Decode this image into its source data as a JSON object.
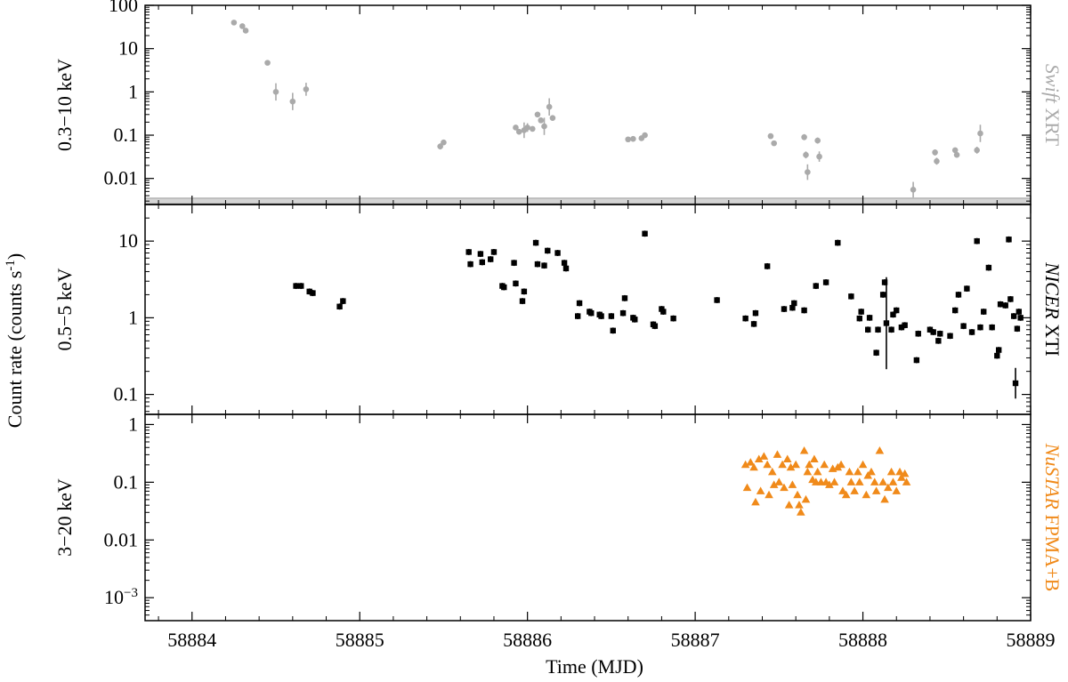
{
  "figure": {
    "ylabel": "Count rate (counts s",
    "ylabel_sup": "-1",
    "ylabel_close": ")",
    "xlabel": "Time (MJD)"
  },
  "chart_data": [
    {
      "type": "scatter",
      "panel": "swift",
      "ylabel": "0.3−10 keV",
      "instrument_italic": "Swift",
      "instrument_rest": " XRT",
      "color": "#aaaaaa",
      "marker": "circle",
      "y_scale": "log",
      "ylim": [
        0.0025,
        100
      ],
      "y_ticks": [
        {
          "value": 100,
          "label": "100"
        },
        {
          "value": 10,
          "label": "10"
        },
        {
          "value": 1,
          "label": "1"
        },
        {
          "value": 0.1,
          "label": "0.1"
        },
        {
          "value": 0.01,
          "label": "0.01"
        }
      ],
      "background_band": [
        0.0026,
        0.0035
      ],
      "points": [
        {
          "x": 58884.25,
          "y": 40,
          "yerr": [
            0.05,
            0.05
          ]
        },
        {
          "x": 58884.3,
          "y": 33,
          "yerr": [
            0.05,
            0.05
          ]
        },
        {
          "x": 58884.32,
          "y": 26,
          "yerr": [
            0.05,
            0.05
          ]
        },
        {
          "x": 58884.45,
          "y": 4.7,
          "yerr": [
            0.05,
            0.05
          ]
        },
        {
          "x": 58884.5,
          "y": 1.0,
          "yerr": [
            0.2,
            0.2
          ]
        },
        {
          "x": 58884.6,
          "y": 0.6,
          "yerr": [
            0.2,
            0.2
          ]
        },
        {
          "x": 58884.68,
          "y": 1.15,
          "yerr": [
            0.15,
            0.15
          ]
        },
        {
          "x": 58885.48,
          "y": 0.055,
          "yerr": [
            0.07,
            0.07
          ]
        },
        {
          "x": 58885.5,
          "y": 0.068,
          "yerr": [
            0.05,
            0.05
          ]
        },
        {
          "x": 58885.93,
          "y": 0.15,
          "yerr": [
            0.05,
            0.05
          ]
        },
        {
          "x": 58885.95,
          "y": 0.12,
          "yerr": [
            0.05,
            0.05
          ]
        },
        {
          "x": 58885.98,
          "y": 0.13,
          "yerr": [
            0.18,
            0.18
          ]
        },
        {
          "x": 58886.0,
          "y": 0.15,
          "yerr": [
            0.1,
            0.1
          ]
        },
        {
          "x": 58886.03,
          "y": 0.14,
          "yerr": [
            0.05,
            0.05
          ]
        },
        {
          "x": 58886.06,
          "y": 0.3,
          "yerr": [
            0.05,
            0.05
          ]
        },
        {
          "x": 58886.08,
          "y": 0.22,
          "yerr": [
            0.05,
            0.05
          ]
        },
        {
          "x": 58886.1,
          "y": 0.16,
          "yerr": [
            0.2,
            0.2
          ]
        },
        {
          "x": 58886.13,
          "y": 0.45,
          "yerr": [
            0.2,
            0.2
          ]
        },
        {
          "x": 58886.15,
          "y": 0.25,
          "yerr": [
            0.05,
            0.05
          ]
        },
        {
          "x": 58886.6,
          "y": 0.08,
          "yerr": [
            0.04,
            0.04
          ]
        },
        {
          "x": 58886.63,
          "y": 0.082,
          "yerr": [
            0.04,
            0.04
          ]
        },
        {
          "x": 58886.68,
          "y": 0.085,
          "yerr": [
            0.05,
            0.05
          ]
        },
        {
          "x": 58886.7,
          "y": 0.1,
          "yerr": [
            0.05,
            0.05
          ]
        },
        {
          "x": 58887.45,
          "y": 0.095,
          "yerr": [
            0.05,
            0.05
          ]
        },
        {
          "x": 58887.47,
          "y": 0.065,
          "yerr": [
            0.05,
            0.05
          ]
        },
        {
          "x": 58887.65,
          "y": 0.09,
          "yerr": [
            0.07,
            0.07
          ]
        },
        {
          "x": 58887.66,
          "y": 0.035,
          "yerr": [
            0.08,
            0.08
          ]
        },
        {
          "x": 58887.67,
          "y": 0.014,
          "yerr": [
            0.18,
            0.18
          ]
        },
        {
          "x": 58887.73,
          "y": 0.075,
          "yerr": [
            0.07,
            0.07
          ]
        },
        {
          "x": 58887.74,
          "y": 0.032,
          "yerr": [
            0.12,
            0.12
          ]
        },
        {
          "x": 58888.3,
          "y": 0.0055,
          "yerr": [
            0.18,
            0.18
          ]
        },
        {
          "x": 58888.43,
          "y": 0.04,
          "yerr": [
            0.07,
            0.07
          ]
        },
        {
          "x": 58888.44,
          "y": 0.025,
          "yerr": [
            0.08,
            0.08
          ]
        },
        {
          "x": 58888.55,
          "y": 0.045,
          "yerr": [
            0.05,
            0.05
          ]
        },
        {
          "x": 58888.56,
          "y": 0.035,
          "yerr": [
            0.05,
            0.05
          ]
        },
        {
          "x": 58888.68,
          "y": 0.045,
          "yerr": [
            0.08,
            0.08
          ]
        },
        {
          "x": 58888.7,
          "y": 0.11,
          "yerr": [
            0.2,
            0.2
          ]
        }
      ]
    },
    {
      "type": "scatter",
      "panel": "nicer",
      "ylabel": "0.5−5 keV",
      "instrument_italic": "NICER",
      "instrument_rest": " XTI",
      "color": "#000000",
      "marker": "square",
      "y_scale": "log",
      "ylim": [
        0.055,
        30
      ],
      "y_ticks": [
        {
          "value": 10,
          "label": "10"
        },
        {
          "value": 1,
          "label": "1"
        },
        {
          "value": 0.1,
          "label": "0.1"
        }
      ],
      "points": [
        {
          "x": 58884.62,
          "y": 2.6
        },
        {
          "x": 58884.65,
          "y": 2.6
        },
        {
          "x": 58884.7,
          "y": 2.2
        },
        {
          "x": 58884.72,
          "y": 2.1
        },
        {
          "x": 58884.88,
          "y": 1.4
        },
        {
          "x": 58884.9,
          "y": 1.65
        },
        {
          "x": 58885.65,
          "y": 7.2
        },
        {
          "x": 58885.66,
          "y": 5.0
        },
        {
          "x": 58885.72,
          "y": 6.8
        },
        {
          "x": 58885.73,
          "y": 5.3
        },
        {
          "x": 58885.78,
          "y": 5.8
        },
        {
          "x": 58885.8,
          "y": 7.2
        },
        {
          "x": 58885.85,
          "y": 2.6
        },
        {
          "x": 58885.86,
          "y": 2.5
        },
        {
          "x": 58885.92,
          "y": 5.2
        },
        {
          "x": 58885.93,
          "y": 2.8
        },
        {
          "x": 58885.97,
          "y": 1.65
        },
        {
          "x": 58885.98,
          "y": 2.2
        },
        {
          "x": 58886.05,
          "y": 9.5
        },
        {
          "x": 58886.06,
          "y": 5.0
        },
        {
          "x": 58886.1,
          "y": 4.8
        },
        {
          "x": 58886.12,
          "y": 7.5
        },
        {
          "x": 58886.18,
          "y": 7.0
        },
        {
          "x": 58886.22,
          "y": 5.2
        },
        {
          "x": 58886.23,
          "y": 4.4
        },
        {
          "x": 58886.3,
          "y": 1.05
        },
        {
          "x": 58886.31,
          "y": 1.55
        },
        {
          "x": 58886.37,
          "y": 1.2
        },
        {
          "x": 58886.38,
          "y": 1.15
        },
        {
          "x": 58886.43,
          "y": 1.1
        },
        {
          "x": 58886.44,
          "y": 1.05
        },
        {
          "x": 58886.5,
          "y": 1.05
        },
        {
          "x": 58886.51,
          "y": 0.68
        },
        {
          "x": 58886.57,
          "y": 1.15
        },
        {
          "x": 58886.58,
          "y": 1.8
        },
        {
          "x": 58886.63,
          "y": 1.0
        },
        {
          "x": 58886.64,
          "y": 0.95
        },
        {
          "x": 58886.7,
          "y": 12.5
        },
        {
          "x": 58886.75,
          "y": 0.82
        },
        {
          "x": 58886.76,
          "y": 0.78
        },
        {
          "x": 58886.8,
          "y": 1.3
        },
        {
          "x": 58886.81,
          "y": 1.2
        },
        {
          "x": 58886.87,
          "y": 0.98
        },
        {
          "x": 58887.13,
          "y": 1.7
        },
        {
          "x": 58887.3,
          "y": 0.98
        },
        {
          "x": 58887.35,
          "y": 0.83
        },
        {
          "x": 58887.36,
          "y": 1.15
        },
        {
          "x": 58887.43,
          "y": 4.7
        },
        {
          "x": 58887.53,
          "y": 1.3
        },
        {
          "x": 58887.58,
          "y": 1.35
        },
        {
          "x": 58887.59,
          "y": 1.55
        },
        {
          "x": 58887.65,
          "y": 1.25
        },
        {
          "x": 58887.72,
          "y": 2.6
        },
        {
          "x": 58887.78,
          "y": 2.9
        },
        {
          "x": 58887.85,
          "y": 9.5
        },
        {
          "x": 58887.93,
          "y": 1.9
        },
        {
          "x": 58887.98,
          "y": 0.98
        },
        {
          "x": 58887.99,
          "y": 1.2
        },
        {
          "x": 58888.03,
          "y": 0.7
        },
        {
          "x": 58888.04,
          "y": 1.0
        },
        {
          "x": 58888.08,
          "y": 0.35
        },
        {
          "x": 58888.09,
          "y": 0.7
        },
        {
          "x": 58888.12,
          "y": 2.0
        },
        {
          "x": 58888.13,
          "y": 2.9
        },
        {
          "x": 58888.14,
          "y": 0.85,
          "yerr": [
            0.6,
            0.6
          ]
        },
        {
          "x": 58888.17,
          "y": 0.7
        },
        {
          "x": 58888.18,
          "y": 1.1
        },
        {
          "x": 58888.2,
          "y": 1.25
        },
        {
          "x": 58888.23,
          "y": 0.75
        },
        {
          "x": 58888.25,
          "y": 0.8
        },
        {
          "x": 58888.32,
          "y": 0.28
        },
        {
          "x": 58888.33,
          "y": 0.62
        },
        {
          "x": 58888.4,
          "y": 0.7
        },
        {
          "x": 58888.42,
          "y": 0.65
        },
        {
          "x": 58888.45,
          "y": 0.5
        },
        {
          "x": 58888.46,
          "y": 0.62
        },
        {
          "x": 58888.52,
          "y": 0.58
        },
        {
          "x": 58888.55,
          "y": 1.25
        },
        {
          "x": 58888.57,
          "y": 2.0
        },
        {
          "x": 58888.6,
          "y": 0.78
        },
        {
          "x": 58888.62,
          "y": 2.4
        },
        {
          "x": 58888.65,
          "y": 0.65
        },
        {
          "x": 58888.68,
          "y": 10.0
        },
        {
          "x": 58888.7,
          "y": 0.75
        },
        {
          "x": 58888.72,
          "y": 1.2
        },
        {
          "x": 58888.75,
          "y": 4.5
        },
        {
          "x": 58888.77,
          "y": 0.75
        },
        {
          "x": 58888.8,
          "y": 0.32
        },
        {
          "x": 58888.81,
          "y": 0.38
        },
        {
          "x": 58888.82,
          "y": 1.5
        },
        {
          "x": 58888.85,
          "y": 1.45
        },
        {
          "x": 58888.87,
          "y": 10.5
        },
        {
          "x": 58888.88,
          "y": 1.75
        },
        {
          "x": 58888.9,
          "y": 1.05
        },
        {
          "x": 58888.92,
          "y": 0.72
        },
        {
          "x": 58888.93,
          "y": 1.2
        },
        {
          "x": 58888.94,
          "y": 1.0
        },
        {
          "x": 58888.91,
          "y": 0.14,
          "yerr": [
            0.2,
            0.2
          ]
        }
      ]
    },
    {
      "type": "scatter",
      "panel": "nustar",
      "ylabel": "3−20 keV",
      "instrument_italic": "NuSTAR",
      "instrument_rest": " FPMA+B",
      "color": "#f08a1a",
      "marker": "triangle",
      "y_scale": "log",
      "ylim": [
        0.0004,
        1.5
      ],
      "y_ticks": [
        {
          "value": 1,
          "label": "1"
        },
        {
          "value": 0.1,
          "label": "0.1"
        },
        {
          "value": 0.01,
          "label": "0.01"
        },
        {
          "value": 0.001,
          "label": "10",
          "sup": "−3"
        }
      ],
      "points": [
        {
          "x": 58887.3,
          "y": 0.2
        },
        {
          "x": 58887.31,
          "y": 0.08
        },
        {
          "x": 58887.33,
          "y": 0.22
        },
        {
          "x": 58887.35,
          "y": 0.18
        },
        {
          "x": 58887.36,
          "y": 0.045
        },
        {
          "x": 58887.38,
          "y": 0.25
        },
        {
          "x": 58887.39,
          "y": 0.07
        },
        {
          "x": 58887.41,
          "y": 0.28
        },
        {
          "x": 58887.43,
          "y": 0.2
        },
        {
          "x": 58887.44,
          "y": 0.06
        },
        {
          "x": 58887.46,
          "y": 0.15
        },
        {
          "x": 58887.47,
          "y": 0.09
        },
        {
          "x": 58887.49,
          "y": 0.3
        },
        {
          "x": 58887.5,
          "y": 0.1
        },
        {
          "x": 58887.52,
          "y": 0.2
        },
        {
          "x": 58887.53,
          "y": 0.08
        },
        {
          "x": 58887.55,
          "y": 0.25
        },
        {
          "x": 58887.56,
          "y": 0.04
        },
        {
          "x": 58887.57,
          "y": 0.18
        },
        {
          "x": 58887.58,
          "y": 0.09
        },
        {
          "x": 58887.6,
          "y": 0.2
        },
        {
          "x": 58887.61,
          "y": 0.06
        },
        {
          "x": 58887.62,
          "y": 0.04
        },
        {
          "x": 58887.63,
          "y": 0.03
        },
        {
          "x": 58887.65,
          "y": 0.35
        },
        {
          "x": 58887.66,
          "y": 0.05
        },
        {
          "x": 58887.67,
          "y": 0.15
        },
        {
          "x": 58887.68,
          "y": 0.2
        },
        {
          "x": 58887.7,
          "y": 0.11
        },
        {
          "x": 58887.71,
          "y": 0.25
        },
        {
          "x": 58887.72,
          "y": 0.1
        },
        {
          "x": 58887.73,
          "y": 0.15
        },
        {
          "x": 58887.75,
          "y": 0.1
        },
        {
          "x": 58887.77,
          "y": 0.2
        },
        {
          "x": 58887.78,
          "y": 0.1
        },
        {
          "x": 58887.8,
          "y": 0.09
        },
        {
          "x": 58887.82,
          "y": 0.17
        },
        {
          "x": 58887.83,
          "y": 0.1
        },
        {
          "x": 58887.85,
          "y": 0.18
        },
        {
          "x": 58887.87,
          "y": 0.2
        },
        {
          "x": 58887.88,
          "y": 0.07
        },
        {
          "x": 58887.9,
          "y": 0.06
        },
        {
          "x": 58887.92,
          "y": 0.15
        },
        {
          "x": 58887.93,
          "y": 0.1
        },
        {
          "x": 58887.95,
          "y": 0.07
        },
        {
          "x": 58887.97,
          "y": 0.15
        },
        {
          "x": 58887.98,
          "y": 0.1
        },
        {
          "x": 58888.0,
          "y": 0.2
        },
        {
          "x": 58888.02,
          "y": 0.06
        },
        {
          "x": 58888.03,
          "y": 0.13
        },
        {
          "x": 58888.05,
          "y": 0.15
        },
        {
          "x": 58888.07,
          "y": 0.1
        },
        {
          "x": 58888.08,
          "y": 0.07
        },
        {
          "x": 58888.1,
          "y": 0.35
        },
        {
          "x": 58888.12,
          "y": 0.1
        },
        {
          "x": 58888.13,
          "y": 0.05
        },
        {
          "x": 58888.15,
          "y": 0.08
        },
        {
          "x": 58888.17,
          "y": 0.15
        },
        {
          "x": 58888.18,
          "y": 0.1
        },
        {
          "x": 58888.2,
          "y": 0.07
        },
        {
          "x": 58888.22,
          "y": 0.15
        },
        {
          "x": 58888.23,
          "y": 0.12
        },
        {
          "x": 58888.25,
          "y": 0.14
        },
        {
          "x": 58888.26,
          "y": 0.1
        }
      ]
    }
  ],
  "x_axis": {
    "xlim": [
      58883.72,
      58889.0
    ],
    "ticks": [
      {
        "value": 58884,
        "label": "58884"
      },
      {
        "value": 58885,
        "label": "58885"
      },
      {
        "value": 58886,
        "label": "58886"
      },
      {
        "value": 58887,
        "label": "58887"
      },
      {
        "value": 58888,
        "label": "58888"
      },
      {
        "value": 58889,
        "label": "58889"
      }
    ]
  }
}
